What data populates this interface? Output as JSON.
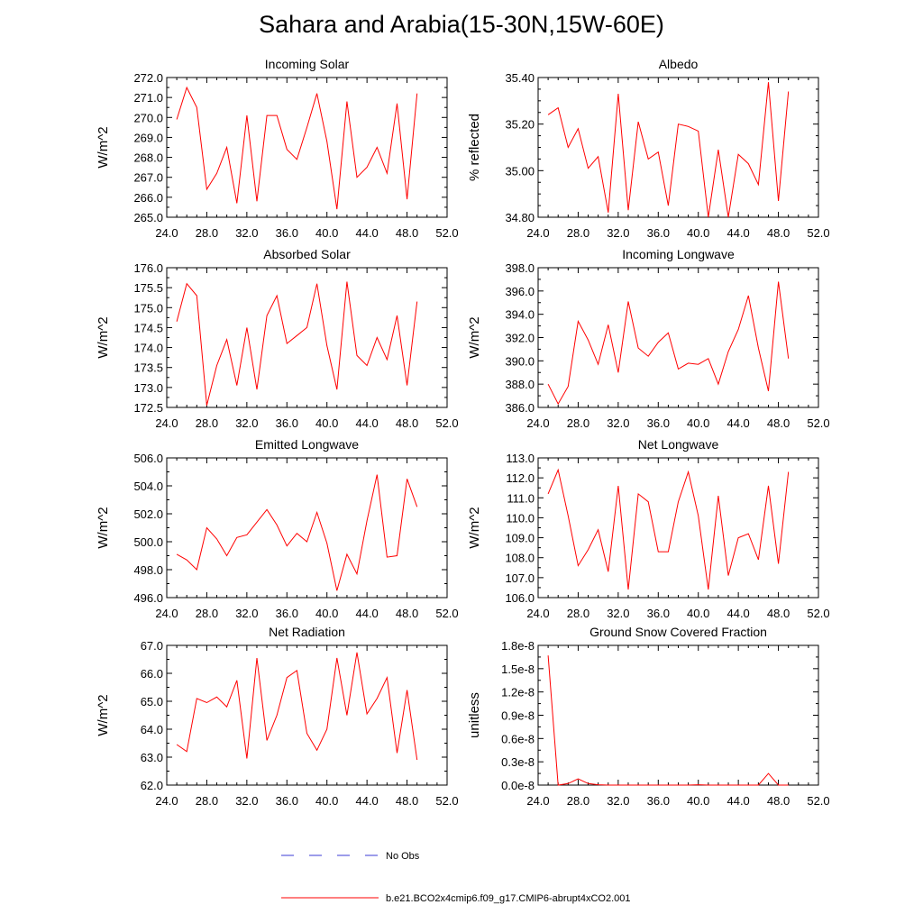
{
  "title": "Sahara and Arabia(15-30N,15W-60E)",
  "colors": {
    "model": "#ff0000",
    "obs": "#3b3bd6",
    "axis": "#000000"
  },
  "legend": {
    "obs_label": "No Obs",
    "model_label": "b.e21.BCO2x4cmip6.f09_g17.CMIP6-abrupt4xCO2.001"
  },
  "chart_data": [
    {
      "type": "line",
      "title": "Incoming Solar",
      "ylabel": "W/m^2",
      "xlim": [
        24,
        52
      ],
      "xticks": [
        "24.0",
        "28.0",
        "32.0",
        "36.0",
        "40.0",
        "44.0",
        "48.0",
        "52.0"
      ],
      "ylim": [
        265,
        272
      ],
      "yticks": [
        "265.0",
        "266.0",
        "267.0",
        "268.0",
        "269.0",
        "270.0",
        "271.0",
        "272.0"
      ],
      "x": [
        25,
        26,
        27,
        28,
        29,
        30,
        31,
        32,
        33,
        34,
        35,
        36,
        37,
        38,
        39,
        40,
        41,
        42,
        43,
        44,
        45,
        46,
        47,
        48,
        49
      ],
      "values": [
        269.9,
        271.5,
        270.5,
        266.4,
        267.2,
        268.5,
        265.7,
        270.1,
        265.8,
        270.1,
        270.1,
        268.4,
        267.9,
        269.5,
        271.2,
        268.8,
        265.4,
        270.8,
        267.0,
        267.5,
        268.5,
        267.2,
        270.7,
        265.9,
        271.2
      ]
    },
    {
      "type": "line",
      "title": "Albedo",
      "ylabel": "% reflected",
      "xlim": [
        24,
        52
      ],
      "xticks": [
        "24.0",
        "28.0",
        "32.0",
        "36.0",
        "40.0",
        "44.0",
        "48.0",
        "52.0"
      ],
      "ylim": [
        34.8,
        35.4
      ],
      "yticks": [
        "34.80",
        "35.00",
        "35.20",
        "35.40"
      ],
      "x": [
        25,
        26,
        27,
        28,
        29,
        30,
        31,
        32,
        33,
        34,
        35,
        36,
        37,
        38,
        39,
        40,
        41,
        42,
        43,
        44,
        45,
        46,
        47,
        48,
        49
      ],
      "values": [
        35.24,
        35.27,
        35.1,
        35.18,
        35.01,
        35.06,
        34.82,
        35.33,
        34.83,
        35.21,
        35.05,
        35.08,
        34.85,
        35.2,
        35.19,
        35.17,
        34.8,
        35.09,
        34.8,
        35.07,
        35.03,
        34.94,
        35.38,
        34.87,
        35.34
      ]
    },
    {
      "type": "line",
      "title": "Absorbed Solar",
      "ylabel": "W/m^2",
      "xlim": [
        24,
        52
      ],
      "xticks": [
        "24.0",
        "28.0",
        "32.0",
        "36.0",
        "40.0",
        "44.0",
        "48.0",
        "52.0"
      ],
      "ylim": [
        172.5,
        176.0
      ],
      "yticks": [
        "172.5",
        "173.0",
        "173.5",
        "174.0",
        "174.5",
        "175.0",
        "175.5",
        "176.0"
      ],
      "x": [
        25,
        26,
        27,
        28,
        29,
        30,
        31,
        32,
        33,
        34,
        35,
        36,
        37,
        38,
        39,
        40,
        41,
        42,
        43,
        44,
        45,
        46,
        47,
        48,
        49
      ],
      "values": [
        174.65,
        175.6,
        175.3,
        172.55,
        173.55,
        174.2,
        173.05,
        174.5,
        172.95,
        174.8,
        175.3,
        174.1,
        174.3,
        174.5,
        175.6,
        174.05,
        172.95,
        175.65,
        173.8,
        173.55,
        174.25,
        173.7,
        174.8,
        173.05,
        175.15
      ]
    },
    {
      "type": "line",
      "title": "Incoming Longwave",
      "ylabel": "W/m^2",
      "xlim": [
        24,
        52
      ],
      "xticks": [
        "24.0",
        "28.0",
        "32.0",
        "36.0",
        "40.0",
        "44.0",
        "48.0",
        "52.0"
      ],
      "ylim": [
        386,
        398
      ],
      "yticks": [
        "386.0",
        "388.0",
        "390.0",
        "392.0",
        "394.0",
        "396.0",
        "398.0"
      ],
      "x": [
        25,
        26,
        27,
        28,
        29,
        30,
        31,
        32,
        33,
        34,
        35,
        36,
        37,
        38,
        39,
        40,
        41,
        42,
        43,
        44,
        45,
        46,
        47,
        48,
        49
      ],
      "values": [
        388.0,
        386.3,
        387.8,
        393.4,
        391.8,
        389.7,
        393.1,
        389.0,
        395.1,
        391.1,
        390.4,
        391.6,
        392.4,
        389.3,
        389.8,
        389.7,
        390.2,
        388.0,
        390.8,
        392.7,
        395.6,
        391.1,
        387.4,
        396.8,
        390.2
      ]
    },
    {
      "type": "line",
      "title": "Emitted Longwave",
      "ylabel": "W/m^2",
      "xlim": [
        24,
        52
      ],
      "xticks": [
        "24.0",
        "28.0",
        "32.0",
        "36.0",
        "40.0",
        "44.0",
        "48.0",
        "52.0"
      ],
      "ylim": [
        496,
        506
      ],
      "yticks": [
        "496.0",
        "498.0",
        "500.0",
        "502.0",
        "504.0",
        "506.0"
      ],
      "x": [
        25,
        26,
        27,
        28,
        29,
        30,
        31,
        32,
        33,
        34,
        35,
        36,
        37,
        38,
        39,
        40,
        41,
        42,
        43,
        44,
        45,
        46,
        47,
        48,
        49
      ],
      "values": [
        499.1,
        498.7,
        498.0,
        501.0,
        500.2,
        499.0,
        500.3,
        500.5,
        501.4,
        502.3,
        501.2,
        499.7,
        500.6,
        500.0,
        502.1,
        499.9,
        496.5,
        499.1,
        497.7,
        501.5,
        504.8,
        498.9,
        499.0,
        504.5,
        502.5
      ]
    },
    {
      "type": "line",
      "title": "Net Longwave",
      "ylabel": "W/m^2",
      "xlim": [
        24,
        52
      ],
      "xticks": [
        "24.0",
        "28.0",
        "32.0",
        "36.0",
        "40.0",
        "44.0",
        "48.0",
        "52.0"
      ],
      "ylim": [
        106,
        113
      ],
      "yticks": [
        "106.0",
        "107.0",
        "108.0",
        "109.0",
        "110.0",
        "111.0",
        "112.0",
        "113.0"
      ],
      "x": [
        25,
        26,
        27,
        28,
        29,
        30,
        31,
        32,
        33,
        34,
        35,
        36,
        37,
        38,
        39,
        40,
        41,
        42,
        43,
        44,
        45,
        46,
        47,
        48,
        49
      ],
      "values": [
        111.2,
        112.4,
        110.1,
        107.6,
        108.4,
        109.4,
        107.3,
        111.6,
        106.4,
        111.2,
        110.8,
        108.3,
        108.3,
        110.8,
        112.3,
        110.1,
        106.4,
        111.1,
        107.1,
        109.0,
        109.2,
        107.9,
        111.6,
        107.7,
        112.3
      ]
    },
    {
      "type": "line",
      "title": "Net Radiation",
      "ylabel": "W/m^2",
      "xlim": [
        24,
        52
      ],
      "xticks": [
        "24.0",
        "28.0",
        "32.0",
        "36.0",
        "40.0",
        "44.0",
        "48.0",
        "52.0"
      ],
      "ylim": [
        62,
        67
      ],
      "yticks": [
        "62.0",
        "63.0",
        "64.0",
        "65.0",
        "66.0",
        "67.0"
      ],
      "x": [
        25,
        26,
        27,
        28,
        29,
        30,
        31,
        32,
        33,
        34,
        35,
        36,
        37,
        38,
        39,
        40,
        41,
        42,
        43,
        44,
        45,
        46,
        47,
        48,
        49
      ],
      "values": [
        63.45,
        63.2,
        65.1,
        64.95,
        65.15,
        64.8,
        65.75,
        62.95,
        66.55,
        63.6,
        64.5,
        65.85,
        66.1,
        63.85,
        63.25,
        64.0,
        66.55,
        64.5,
        66.75,
        64.55,
        65.1,
        65.85,
        63.15,
        65.4,
        62.9
      ]
    },
    {
      "type": "line",
      "title": "Ground Snow Covered Fraction",
      "ylabel": "unitless",
      "xlim": [
        24,
        52
      ],
      "xticks": [
        "24.0",
        "28.0",
        "32.0",
        "36.0",
        "40.0",
        "44.0",
        "48.0",
        "52.0"
      ],
      "ylim": [
        0,
        1.8e-08
      ],
      "yticks": [
        "0.0e-8",
        "0.3e-8",
        "0.6e-8",
        "0.9e-8",
        "1.2e-8",
        "1.5e-8",
        "1.8e-8"
      ],
      "x": [
        25,
        26,
        27,
        28,
        29,
        30,
        31,
        32,
        33,
        34,
        35,
        36,
        37,
        38,
        39,
        40,
        41,
        42,
        43,
        44,
        45,
        46,
        47,
        48,
        49
      ],
      "values": [
        1.67e-08,
        0,
        2e-10,
        8e-10,
        2e-10,
        5e-11,
        0,
        0,
        0,
        0,
        0,
        0,
        0,
        0,
        0,
        5e-11,
        0,
        0,
        0,
        0,
        0,
        0,
        1.5e-09,
        0,
        0
      ]
    }
  ]
}
